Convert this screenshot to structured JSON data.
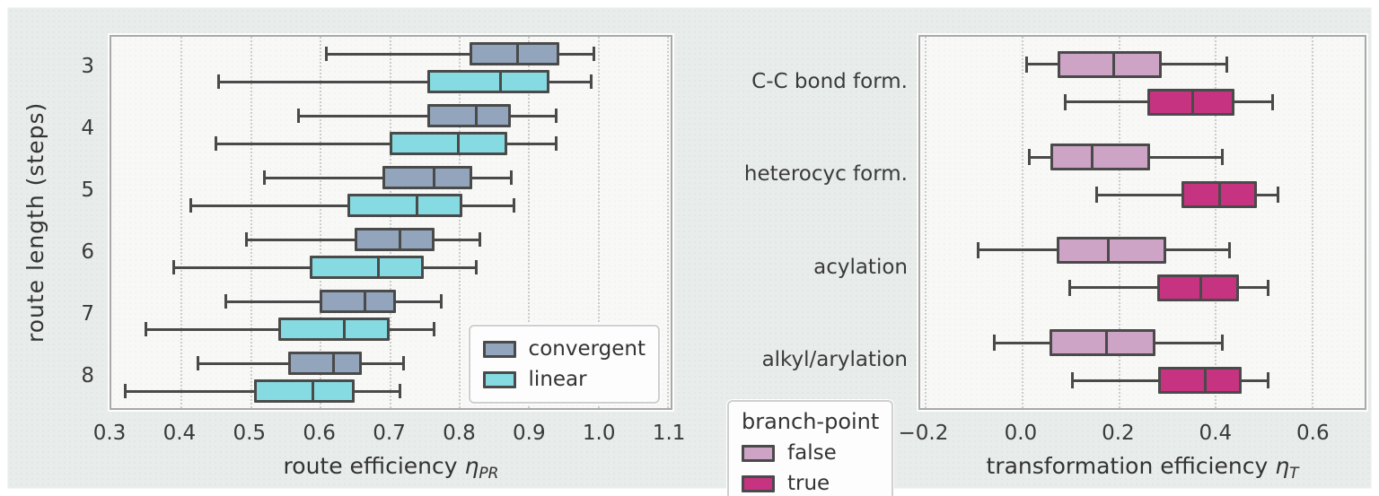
{
  "figure": {
    "background": "#e8eceb",
    "plot_background": "#f8f8f7",
    "stroke_color": "#4a4a4a",
    "grid_color": "#c9cdcc",
    "text_color": "#333333"
  },
  "chart_data": [
    {
      "type": "boxplot",
      "orientation": "horizontal",
      "ylabel": "route length (steps)",
      "xlabel": {
        "text": "route efficiency ",
        "symbol": "η",
        "subscript": "PR"
      },
      "categories": [
        "3",
        "4",
        "5",
        "6",
        "7",
        "8"
      ],
      "xlim": [
        0.3,
        1.105
      ],
      "xticks": [
        {
          "v": 0.3,
          "label": "0.3"
        },
        {
          "v": 0.4,
          "label": "0.4"
        },
        {
          "v": 0.5,
          "label": "0.5"
        },
        {
          "v": 0.6,
          "label": "0.6"
        },
        {
          "v": 0.7,
          "label": "0.7"
        },
        {
          "v": 0.8,
          "label": "0.8"
        },
        {
          "v": 0.9,
          "label": "0.9"
        },
        {
          "v": 1.0,
          "label": "1.0"
        },
        {
          "v": 1.1,
          "label": "1.1"
        }
      ],
      "grid": "vertical-dotted",
      "series": [
        {
          "name": "convergent",
          "color": "#92a5bc",
          "boxes": [
            {
              "whislo": 0.61,
              "q1": 0.815,
              "med": 0.885,
              "q3": 0.945,
              "whishi": 0.995
            },
            {
              "whislo": 0.57,
              "q1": 0.755,
              "med": 0.825,
              "q3": 0.875,
              "whishi": 0.94
            },
            {
              "whislo": 0.52,
              "q1": 0.69,
              "med": 0.765,
              "q3": 0.82,
              "whishi": 0.875
            },
            {
              "whislo": 0.495,
              "q1": 0.65,
              "med": 0.715,
              "q3": 0.765,
              "whishi": 0.83
            },
            {
              "whislo": 0.465,
              "q1": 0.6,
              "med": 0.665,
              "q3": 0.71,
              "whishi": 0.775
            },
            {
              "whislo": 0.425,
              "q1": 0.555,
              "med": 0.62,
              "q3": 0.66,
              "whishi": 0.72
            }
          ]
        },
        {
          "name": "linear",
          "color": "#85dbe1",
          "boxes": [
            {
              "whislo": 0.455,
              "q1": 0.755,
              "med": 0.86,
              "q3": 0.93,
              "whishi": 0.99
            },
            {
              "whislo": 0.45,
              "q1": 0.7,
              "med": 0.8,
              "q3": 0.87,
              "whishi": 0.94
            },
            {
              "whislo": 0.415,
              "q1": 0.64,
              "med": 0.74,
              "q3": 0.805,
              "whishi": 0.88
            },
            {
              "whislo": 0.39,
              "q1": 0.585,
              "med": 0.685,
              "q3": 0.75,
              "whishi": 0.825
            },
            {
              "whislo": 0.35,
              "q1": 0.54,
              "med": 0.635,
              "q3": 0.7,
              "whishi": 0.765
            },
            {
              "whislo": 0.32,
              "q1": 0.505,
              "med": 0.59,
              "q3": 0.65,
              "whishi": 0.715
            }
          ]
        }
      ],
      "legend": {
        "position": "inside-bottom-right",
        "items": [
          {
            "label": "convergent",
            "color": "#92a5bc"
          },
          {
            "label": "linear",
            "color": "#85dbe1"
          }
        ]
      }
    },
    {
      "type": "boxplot",
      "orientation": "horizontal",
      "ylabel": "",
      "xlabel": {
        "text": "transformation efficiency ",
        "symbol": "η",
        "subscript": "T"
      },
      "categories": [
        "C-C bond form.",
        "heterocyc form.",
        "acylation",
        "alkyl/arylation"
      ],
      "xlim": [
        -0.21,
        0.71
      ],
      "xticks": [
        {
          "v": -0.2,
          "label": "−0.2"
        },
        {
          "v": 0.0,
          "label": "0.0"
        },
        {
          "v": 0.2,
          "label": "0.2"
        },
        {
          "v": 0.4,
          "label": "0.4"
        },
        {
          "v": 0.6,
          "label": "0.6"
        }
      ],
      "grid": "vertical-dotted",
      "series": [
        {
          "name": "false",
          "color": "#cda4c5",
          "boxes": [
            {
              "whislo": 0.01,
              "q1": 0.075,
              "med": 0.19,
              "q3": 0.29,
              "whishi": 0.425
            },
            {
              "whislo": 0.015,
              "q1": 0.06,
              "med": 0.145,
              "q3": 0.265,
              "whishi": 0.415
            },
            {
              "whislo": -0.09,
              "q1": 0.073,
              "med": 0.18,
              "q3": 0.3,
              "whishi": 0.43
            },
            {
              "whislo": -0.057,
              "q1": 0.057,
              "med": 0.175,
              "q3": 0.277,
              "whishi": 0.415
            }
          ]
        },
        {
          "name": "true",
          "color": "#c53381",
          "boxes": [
            {
              "whislo": 0.09,
              "q1": 0.26,
              "med": 0.355,
              "q3": 0.44,
              "whishi": 0.52
            },
            {
              "whislo": 0.155,
              "q1": 0.33,
              "med": 0.41,
              "q3": 0.487,
              "whishi": 0.53
            },
            {
              "whislo": 0.1,
              "q1": 0.28,
              "med": 0.37,
              "q3": 0.45,
              "whishi": 0.51
            },
            {
              "whislo": 0.105,
              "q1": 0.283,
              "med": 0.38,
              "q3": 0.455,
              "whishi": 0.51
            }
          ]
        }
      ],
      "legend": {
        "title": "branch-point",
        "position": "outside-bottom-left",
        "items": [
          {
            "label": "false",
            "color": "#cda4c5"
          },
          {
            "label": "true",
            "color": "#c53381"
          }
        ]
      }
    }
  ]
}
